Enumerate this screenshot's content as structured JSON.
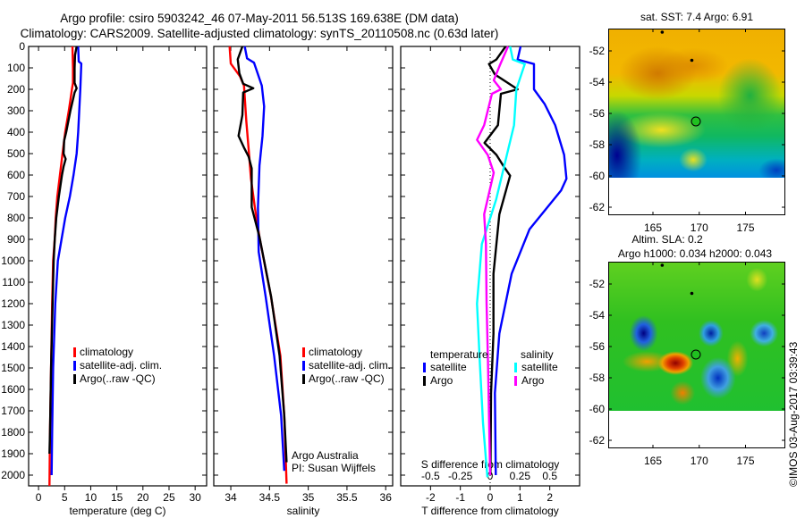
{
  "title": {
    "line1": "Argo profile: csiro 5903242_46 07-May-2011 56.513S 169.638E (DM data)",
    "line2": "Climatology: CARS2009. Satellite-adjusted climatology: synTS_20110508.nc (0.63d later)"
  },
  "colors": {
    "climatology": "#ff0000",
    "satellite": "#0000ff",
    "argo": "#000000",
    "sal_satellite": "#00ffff",
    "sal_argo": "#ff00ff"
  },
  "chart_data": [
    {
      "type": "line",
      "id": "temperature",
      "xlabel": "temperature (deg C)",
      "ylabel": "",
      "xlim": [
        -1.9,
        32.2
      ],
      "ylim": [
        2050,
        0
      ],
      "xticks": [
        0,
        5,
        10,
        15,
        20,
        25,
        30
      ],
      "yticks": [
        0,
        100,
        200,
        300,
        400,
        500,
        600,
        700,
        800,
        900,
        1000,
        1100,
        1200,
        1300,
        1400,
        1500,
        1600,
        1700,
        1800,
        1900,
        2000
      ],
      "legend": [
        "climatology",
        "satellite-adj. clim.",
        "Argo(..raw -QC)"
      ],
      "series": [
        {
          "name": "climatology",
          "color_key": "climatology",
          "points": [
            [
              0,
              6.5
            ],
            [
              100,
              6.6
            ],
            [
              170,
              6.6
            ],
            [
              200,
              6.4
            ],
            [
              250,
              6.1
            ],
            [
              300,
              5.8
            ],
            [
              400,
              5.1
            ],
            [
              500,
              4.6
            ],
            [
              600,
              4.1
            ],
            [
              700,
              3.6
            ],
            [
              800,
              3.3
            ],
            [
              900,
              3.1
            ],
            [
              1000,
              2.8
            ],
            [
              1200,
              2.6
            ],
            [
              1500,
              2.4
            ],
            [
              1800,
              2.2
            ],
            [
              2050,
              2.1
            ]
          ]
        },
        {
          "name": "satellite-adj. clim.",
          "color_key": "satellite",
          "points": [
            [
              0,
              7.6
            ],
            [
              70,
              7.7
            ],
            [
              80,
              8.2
            ],
            [
              200,
              8.0
            ],
            [
              300,
              7.8
            ],
            [
              400,
              7.6
            ],
            [
              500,
              7.3
            ],
            [
              600,
              6.7
            ],
            [
              700,
              6.0
            ],
            [
              800,
              5.1
            ],
            [
              900,
              4.4
            ],
            [
              1000,
              3.7
            ],
            [
              1200,
              3.2
            ],
            [
              1500,
              2.8
            ],
            [
              1800,
              2.6
            ],
            [
              2000,
              2.5
            ]
          ]
        },
        {
          "name": "Argo(..raw -QC)",
          "color_key": "argo",
          "points": [
            [
              0,
              7.3
            ],
            [
              40,
              7.0
            ],
            [
              100,
              6.9
            ],
            [
              170,
              6.9
            ],
            [
              195,
              7.3
            ],
            [
              215,
              6.9
            ],
            [
              300,
              6.1
            ],
            [
              400,
              5.3
            ],
            [
              440,
              4.9
            ],
            [
              500,
              4.8
            ],
            [
              525,
              5.2
            ],
            [
              560,
              4.8
            ],
            [
              600,
              4.5
            ],
            [
              700,
              3.9
            ],
            [
              800,
              3.4
            ],
            [
              900,
              3.1
            ],
            [
              1000,
              2.9
            ],
            [
              1200,
              2.7
            ],
            [
              1500,
              2.4
            ],
            [
              1800,
              2.2
            ],
            [
              1900,
              2.1
            ]
          ]
        }
      ]
    },
    {
      "type": "line",
      "id": "salinity",
      "xlabel": "salinity",
      "ylabel": "",
      "xlim": [
        33.78,
        36.09
      ],
      "ylim": [
        2050,
        0
      ],
      "xticks": [
        34,
        34.5,
        35,
        35.5,
        36
      ],
      "legend": [
        "climatology",
        "satellite-adj. clim.",
        "Argo(..raw -QC)"
      ],
      "annotation": [
        "Argo Australia",
        "PI: Susan Wijffels"
      ],
      "series": [
        {
          "name": "climatology",
          "color_key": "climatology",
          "points": [
            [
              0,
              33.985
            ],
            [
              80,
              34.0
            ],
            [
              140,
              34.12
            ],
            [
              183,
              34.17
            ],
            [
              350,
              34.2
            ],
            [
              480,
              34.23
            ],
            [
              617,
              34.26
            ],
            [
              750,
              34.31
            ],
            [
              890,
              34.37
            ],
            [
              1170,
              34.52
            ],
            [
              1444,
              34.64
            ],
            [
              1722,
              34.69
            ],
            [
              2040,
              34.72
            ]
          ]
        },
        {
          "name": "satellite-adj. clim.",
          "color_key": "satellite",
          "points": [
            [
              0,
              34.18
            ],
            [
              56,
              34.21
            ],
            [
              76,
              34.3
            ],
            [
              183,
              34.4
            ],
            [
              280,
              34.43
            ],
            [
              417,
              34.41
            ],
            [
              556,
              34.37
            ],
            [
              750,
              34.35
            ],
            [
              958,
              34.36
            ],
            [
              1167,
              34.45
            ],
            [
              1444,
              34.56
            ],
            [
              1722,
              34.65
            ],
            [
              1980,
              34.69
            ]
          ]
        },
        {
          "name": "Argo(..raw -QC)",
          "color_key": "argo",
          "points": [
            [
              0,
              34.15
            ],
            [
              60,
              34.09
            ],
            [
              125,
              34.11
            ],
            [
              174,
              34.16
            ],
            [
              195,
              34.29
            ],
            [
              215,
              34.16
            ],
            [
              320,
              34.15
            ],
            [
              417,
              34.1
            ],
            [
              472,
              34.17
            ],
            [
              514,
              34.23
            ],
            [
              569,
              34.27
            ],
            [
              750,
              34.27
            ],
            [
              889,
              34.37
            ],
            [
              1167,
              34.52
            ],
            [
              1444,
              34.63
            ],
            [
              1722,
              34.69
            ],
            [
              1940,
              34.72
            ]
          ]
        }
      ]
    },
    {
      "type": "line",
      "id": "difference",
      "xlabel": "T difference from climatology",
      "xlabel2": "S difference from climatology",
      "xlim": [
        -3,
        3
      ],
      "ylim": [
        2050,
        0
      ],
      "xticks": [
        -2,
        -1,
        0,
        1,
        2
      ],
      "xticks2": [
        -0.5,
        -0.25,
        0,
        0.25,
        0.5
      ],
      "xticks2_labels": [
        "-0.5",
        "-0.25",
        "0",
        "0.25",
        "0.5"
      ],
      "s_scale": 4,
      "legend": {
        "temperature": "temperature",
        "salinity": "salinity",
        "items": [
          "satellite",
          "Argo",
          "satellite",
          "Argo"
        ]
      },
      "series": [
        {
          "name": "T satellite",
          "color_key": "satellite",
          "axis": "T",
          "points": [
            [
              0,
              1.02
            ],
            [
              61,
              0.92
            ],
            [
              82,
              1.47
            ],
            [
              200,
              1.47
            ],
            [
              269,
              1.83
            ],
            [
              367,
              2.18
            ],
            [
              506,
              2.48
            ],
            [
              617,
              2.56
            ],
            [
              672,
              2.38
            ],
            [
              853,
              1.32
            ],
            [
              1061,
              0.72
            ],
            [
              1339,
              0.31
            ],
            [
              1617,
              0.16
            ],
            [
              2000,
              0.19
            ]
          ]
        },
        {
          "name": "T Argo",
          "color_key": "argo",
          "axis": "T",
          "points": [
            [
              0,
              0.52
            ],
            [
              61,
              0.21
            ],
            [
              82,
              -0.04
            ],
            [
              131,
              0.16
            ],
            [
              200,
              0.92
            ],
            [
              221,
              0.36
            ],
            [
              367,
              0.26
            ],
            [
              450,
              -0.19
            ],
            [
              506,
              0.21
            ],
            [
              561,
              0.46
            ],
            [
              603,
              0.67
            ],
            [
              783,
              0.31
            ],
            [
              1061,
              0.11
            ],
            [
              1339,
              0.11
            ],
            [
              1617,
              0.03
            ],
            [
              2000,
              0.01
            ]
          ]
        },
        {
          "name": "S satellite",
          "color_key": "sal_satellite",
          "axis": "S",
          "points": [
            [
              0,
              0.167
            ],
            [
              61,
              0.19
            ],
            [
              82,
              0.29
            ],
            [
              200,
              0.22
            ],
            [
              367,
              0.2
            ],
            [
              506,
              0.14
            ],
            [
              714,
              0.05
            ],
            [
              922,
              -0.07
            ],
            [
              1200,
              -0.11
            ],
            [
              1478,
              -0.086
            ],
            [
              1756,
              -0.06
            ],
            [
              2010,
              -0.023
            ]
          ]
        },
        {
          "name": "S Argo",
          "color_key": "sal_argo",
          "axis": "S",
          "points": [
            [
              0,
              0.15
            ],
            [
              89,
              0.08
            ],
            [
              158,
              0.03
            ],
            [
              200,
              0.09
            ],
            [
              221,
              0.015
            ],
            [
              367,
              -0.05
            ],
            [
              436,
              -0.11
            ],
            [
              506,
              -0.02
            ],
            [
              589,
              0.03
            ],
            [
              783,
              -0.05
            ],
            [
              922,
              -0.035
            ],
            [
              1200,
              -0.03
            ],
            [
              1478,
              -0.018
            ],
            [
              2000,
              0
            ]
          ]
        }
      ]
    }
  ],
  "maps": {
    "sst": {
      "title": "sat. SST: 7.4 Argo: 6.91"
    },
    "sla": {
      "title1": "Altim. SLA: 0.2",
      "title2": "Argo h1000: 0.034 h2000: 0.043"
    },
    "lat_ticks": [
      "-52",
      "-54",
      "-56",
      "-58",
      "-60",
      "-62"
    ],
    "lon_ticks": [
      "165",
      "170",
      "175"
    ],
    "profile_location": {
      "lon": 169.638,
      "lat": -56.513
    },
    "other_floats": [
      {
        "lon": 166.0,
        "lat": -50.8
      },
      {
        "lon": 169.2,
        "lat": -52.6
      }
    ]
  },
  "stamp": "©IMOS 03-Aug-2017 03:39:43"
}
